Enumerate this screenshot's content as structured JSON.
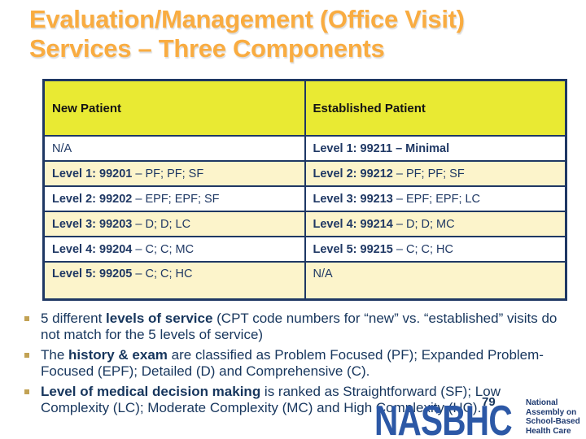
{
  "title": {
    "line1": "Evaluation/Management (Office Visit)",
    "line2": "Services – Three Components"
  },
  "table": {
    "headers": [
      "New Patient",
      "Established Patient"
    ],
    "rows": [
      {
        "left": {
          "b": "",
          "r": "N/A"
        },
        "right": {
          "b": "Level 1: 99211 – Minimal",
          "r": ""
        }
      },
      {
        "left": {
          "b": "Level 1: 99201",
          "r": " – PF; PF; SF"
        },
        "right": {
          "b": "Level 2: 99212",
          "r": " – PF; PF; SF"
        }
      },
      {
        "left": {
          "b": "Level 2: 99202",
          "r": " – EPF; EPF; SF"
        },
        "right": {
          "b": "Level 3: 99213",
          "r": " – EPF; EPF; LC"
        }
      },
      {
        "left": {
          "b": "Level 3: 99203",
          "r": " – D; D; LC"
        },
        "right": {
          "b": "Level 4: 99214",
          "r": " – D; D; MC"
        }
      },
      {
        "left": {
          "b": "Level 4: 99204",
          "r": " – C; C; MC"
        },
        "right": {
          "b": "Level 5: 99215",
          "r": " – C; C; HC"
        }
      },
      {
        "left": {
          "b": "Level 5: 99205",
          "r": " – C; C; HC"
        },
        "right": {
          "b": "",
          "r": "N/A"
        }
      }
    ]
  },
  "bullets": [
    {
      "pre": "5 different ",
      "bold": "levels of service",
      "post": " (CPT code numbers for “new” vs. “established” visits do not match for the 5 levels of service)"
    },
    {
      "pre": "The ",
      "bold": "history & exam",
      "post": " are classified as Problem Focused (PF); Expanded Problem-Focused (EPF); Detailed (D) and Comprehensive (C)."
    },
    {
      "pre": "",
      "bold": "Level of medical decision making",
      "post": " is ranked as Straightforward (SF); Low Complexity (LC); Moderate Complexity (MC) and High Complexity (HC)."
    }
  ],
  "page_number": "79",
  "logo": {
    "acronym": "NASBHC",
    "tagline": {
      "line1": "National",
      "line2": "Assembly on",
      "line3": "School-Based",
      "line4": "Health Care"
    }
  },
  "colors": {
    "title_orange": "#F9AC41",
    "header_yellow": "#E9EA33",
    "row_cream": "#FCF4CB",
    "border_navy": "#1F3864",
    "text_navy": "#17365D",
    "bullet_marker_tan": "#C2A254",
    "logo_blue": "#2C58A6"
  }
}
